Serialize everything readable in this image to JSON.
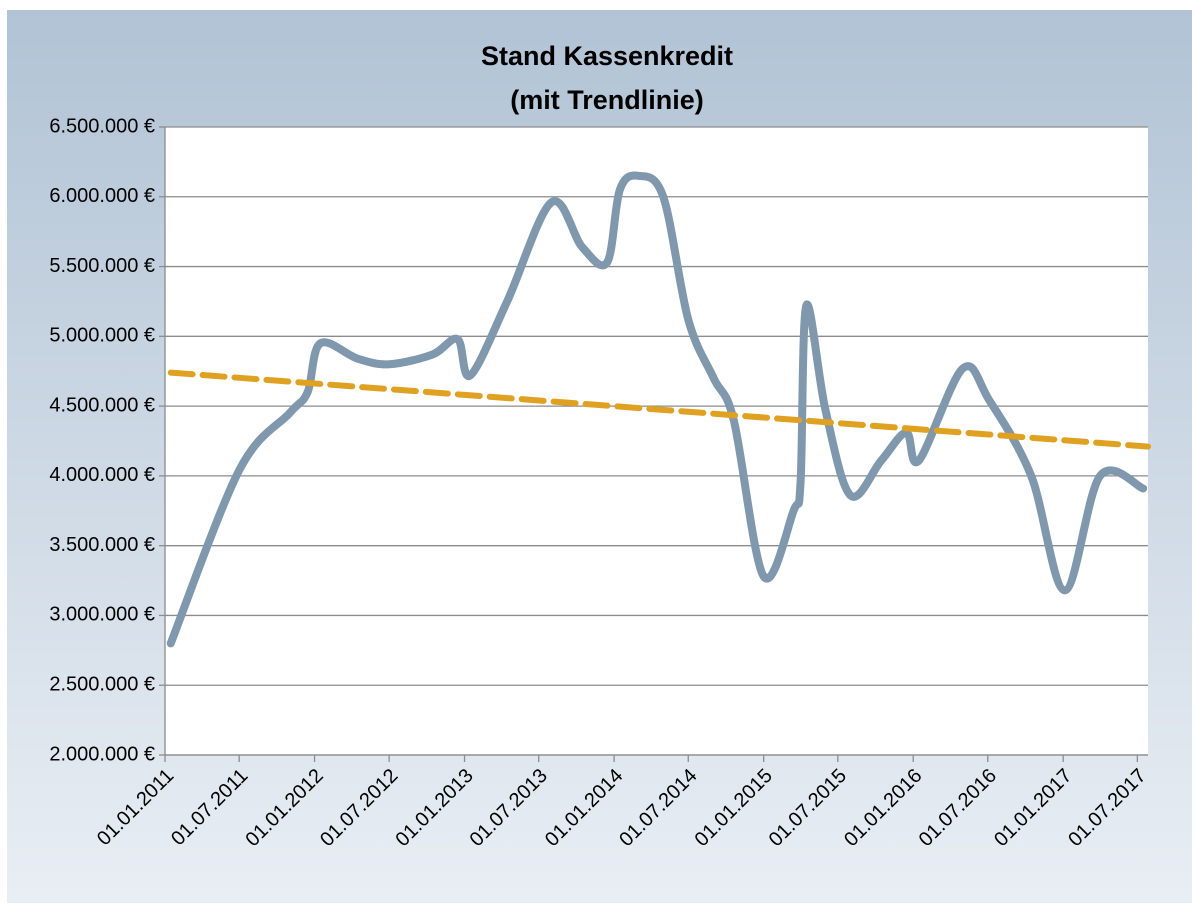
{
  "chart_data": {
    "type": "line",
    "title": "Stand Kassenkredit",
    "subtitle": "(mit Trendlinie)",
    "xlim": [
      "2011-01-01",
      "2017-07-27"
    ],
    "xticks": [
      {
        "value": "2011-01-01",
        "label": "01.01.2011"
      },
      {
        "value": "2011-07-01",
        "label": "01.07.2011"
      },
      {
        "value": "2012-01-01",
        "label": "01.01.2012"
      },
      {
        "value": "2012-07-01",
        "label": "01.07.2012"
      },
      {
        "value": "2013-01-01",
        "label": "01.01.2013"
      },
      {
        "value": "2013-07-01",
        "label": "01.07.2013"
      },
      {
        "value": "2014-01-01",
        "label": "01.01.2014"
      },
      {
        "value": "2014-07-01",
        "label": "01.07.2014"
      },
      {
        "value": "2015-01-01",
        "label": "01.01.2015"
      },
      {
        "value": "2015-07-01",
        "label": "01.07.2015"
      },
      {
        "value": "2016-01-01",
        "label": "01.01.2016"
      },
      {
        "value": "2016-07-01",
        "label": "01.07.2016"
      },
      {
        "value": "2017-01-01",
        "label": "01.01.2017"
      },
      {
        "value": "2017-07-01",
        "label": "01.07.2017"
      }
    ],
    "ylim": [
      2000000,
      6500000
    ],
    "yticks": [
      {
        "value": 2000000,
        "label": "2.000.000 €"
      },
      {
        "value": 2500000,
        "label": "2.500.000 €"
      },
      {
        "value": 3000000,
        "label": "3.000.000 €"
      },
      {
        "value": 3500000,
        "label": "3.500.000 €"
      },
      {
        "value": 4000000,
        "label": "4.000.000 €"
      },
      {
        "value": 4500000,
        "label": "4.500.000 €"
      },
      {
        "value": 5000000,
        "label": "5.000.000 €"
      },
      {
        "value": 5500000,
        "label": "5.500.000 €"
      },
      {
        "value": 6000000,
        "label": "6.000.000 €"
      },
      {
        "value": 6500000,
        "label": "6.500.000 €"
      }
    ],
    "grid": true,
    "series": [
      {
        "color": "#7f98ae",
        "dash": false,
        "x": [
          "2011-01-15",
          "2011-07-01",
          "2011-11-01",
          "2011-12-15",
          "2012-01-15",
          "2012-04-15",
          "2012-07-01",
          "2012-10-15",
          "2012-12-15",
          "2013-01-15",
          "2013-04-15",
          "2013-08-01",
          "2013-10-15",
          "2013-12-15",
          "2014-01-15",
          "2014-03-01",
          "2014-05-01",
          "2014-07-01",
          "2014-09-01",
          "2014-10-20",
          "2015-01-01",
          "2015-03-15",
          "2015-04-01",
          "2015-04-15",
          "2015-06-01",
          "2015-08-01",
          "2015-10-15",
          "2015-12-15",
          "2016-01-15",
          "2016-05-01",
          "2016-07-05",
          "2016-10-15",
          "2017-01-05",
          "2017-04-01",
          "2017-07-15"
        ],
        "values": [
          2800000,
          4040000,
          4450000,
          4600000,
          4950000,
          4840000,
          4800000,
          4870000,
          4980000,
          4720000,
          5250000,
          5960000,
          5640000,
          5530000,
          6050000,
          6150000,
          6000000,
          5120000,
          4700000,
          4400000,
          3280000,
          3750000,
          3950000,
          5220000,
          4470000,
          3860000,
          4110000,
          4310000,
          4110000,
          4770000,
          4540000,
          4000000,
          3180000,
          4000000,
          3910000
        ]
      },
      {
        "color": "#e0a020",
        "dash": true,
        "x": [
          "2011-01-15",
          "2017-07-27"
        ],
        "values": [
          4740000,
          4210000
        ]
      }
    ]
  }
}
